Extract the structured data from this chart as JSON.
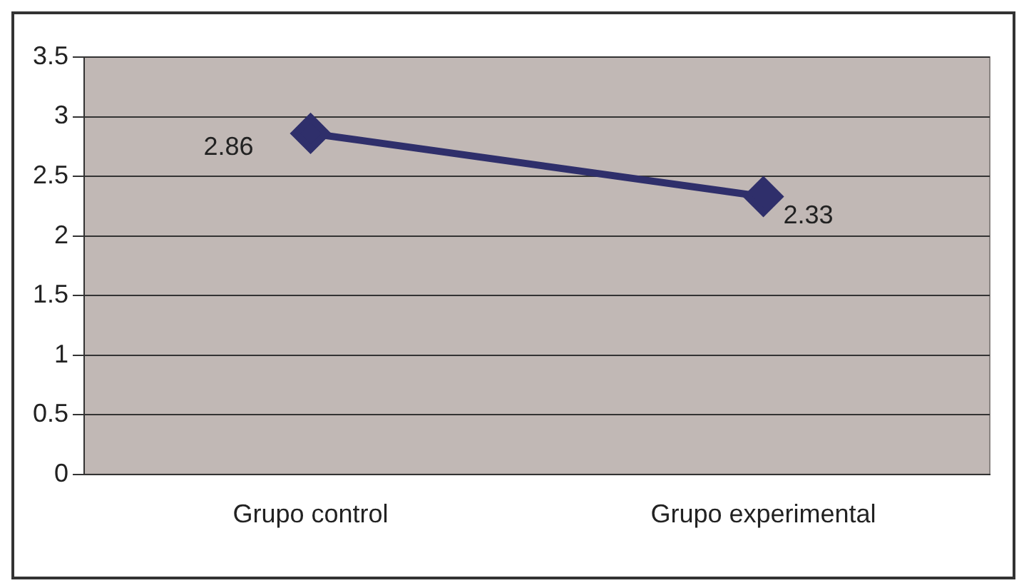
{
  "chart_data": {
    "type": "line",
    "categories": [
      "Grupo control",
      "Grupo experimental"
    ],
    "series": [
      {
        "color": "#2f2f6b",
        "values": [
          2.86,
          2.33
        ]
      }
    ],
    "ylim": [
      0,
      3.5
    ],
    "yticks": [
      0,
      0.5,
      1,
      1.5,
      2,
      2.5,
      3,
      3.5
    ],
    "grid": "y",
    "legend": false,
    "marker": "diamond",
    "line_style": "solid",
    "data_labels": true
  }
}
